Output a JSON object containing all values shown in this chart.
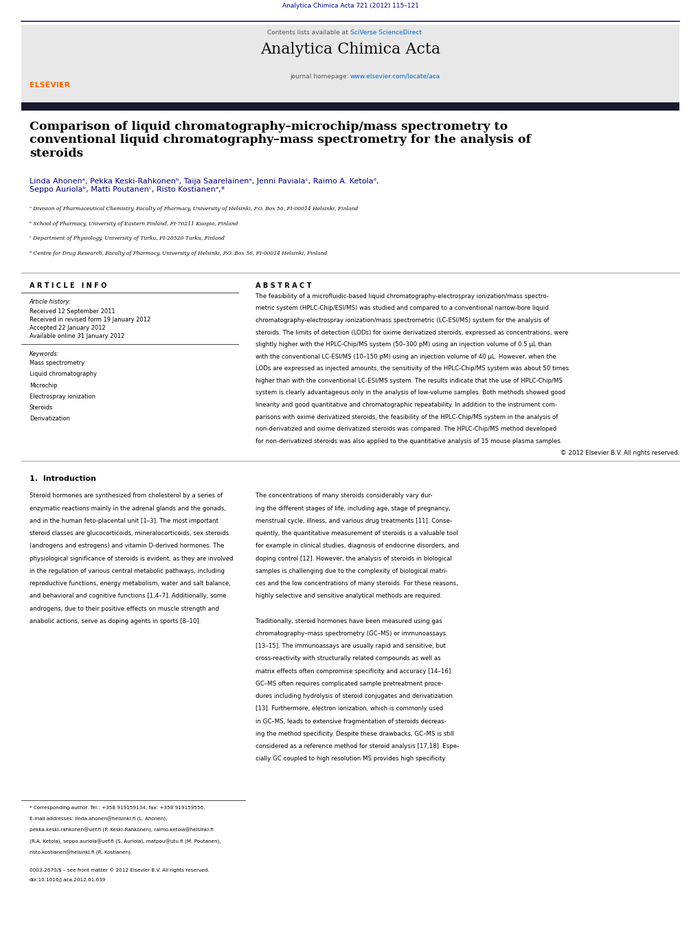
{
  "page_width": 10.2,
  "page_height": 13.51,
  "background_color": "#ffffff",
  "top_journal_ref": "Analytica Chimica Acta 721 (2012) 115–121",
  "top_journal_ref_color": "#00008B",
  "header_bg_color": "#e8e8e8",
  "header_border_color": "#1a1a6e",
  "contents_text": "Contents lists available at ",
  "sciverse_text": "SciVerse ScienceDirect",
  "sciverse_color": "#0066cc",
  "journal_name": "Analytica Chimica Acta",
  "journal_homepage_prefix": "journal homepage: ",
  "journal_url": "www.elsevier.com/locate/aca",
  "journal_url_color": "#0066cc",
  "dark_bar_color": "#1a1a2e",
  "title_text": "Comparison of liquid chromatography–microchip/mass spectrometry to\nconventional liquid chromatography–mass spectrometry for the analysis of\nsteroids",
  "authors_text": "Linda Ahonenᵃ, Pekka Keski-Rahkonenᵇ, Taija Saarelainenᵃ, Jenni Pavialaᶜ, Raimo A. Ketolaᵈ,\nSeppo Auriolaᵇ, Matti Poutanenᶜ, Risto Kostianenᵃ,*",
  "affil_a": "ᵃ Division of Pharmaceutical Chemistry, Faculty of Pharmacy, University of Helsinki, P.O. Box 56, FI-00014 Helsinki, Finland",
  "affil_b": "ᵇ School of Pharmacy, University of Eastern Finland, FI-70211 Kuopio, Finland",
  "affil_c": "ᶜ Department of Physiology, University of Turku, FI-20520 Turku, Finland",
  "affil_d": "ᵈ Centre for Drug Research, Faculty of Pharmacy, University of Helsinki, P.O. Box 56, FI-00014 Helsinki, Finland",
  "article_info_title": "A R T I C L E   I N F O",
  "article_history_title": "Article history:",
  "received1": "Received 12 September 2011",
  "received2": "Received in revised form 19 January 2012",
  "accepted": "Accepted 22 January 2012",
  "available": "Available online 31 January 2012",
  "keywords_title": "Keywords:",
  "keywords": [
    "Mass spectrometry",
    "Liquid chromatography",
    "Microchip",
    "Electrospray ionization",
    "Steroids",
    "Derivatization"
  ],
  "abstract_title": "A B S T R A C T",
  "section1_title": "1.  Introduction",
  "footnote_star": "* Corresponding author. Tel.: +358 919159134; fax: +358 919159556.",
  "footnote_email_line1": "E-mail addresses: linda.ahonen@helsinki.fi (L. Ahonen),",
  "footnote_email_line2": "pekka.keski-rahkonen@uef.fi (P. Keski-Rahkonen), raimo.ketola@helsinki.fi",
  "footnote_email_line3": "(R.A. Ketola), seppo.auriola@uef.fi (S. Auriola), matpou@utu.fi (M. Poutanen),",
  "footnote_email_line4": "risto.kostianen@helsinki.fi (R. Kostianen).",
  "footnote_bottom1": "0003-2670/$ – see front matter © 2012 Elsevier B.V. All rights reserved.",
  "footnote_bottom2": "doi:10.1016/j.aca.2012.01.039",
  "abstract_lines": [
    "The feasibility of a microfluidic-based liquid chromatography-electrospray ionization/mass spectro-",
    "metric system (HPLC-Chip/ESI/MS) was studied and compared to a conventional narrow-bore liquid",
    "chromatography-electrospray ionization/mass spectrometric (LC-ESI/MS) system for the analysis of",
    "steroids. The limits of detection (LODs) for oxime derivatized steroids, expressed as concentrations, were",
    "slightly higher with the HPLC-Chip/MS system (50–300 pM) using an injection volume of 0.5 μL than",
    "with the conventional LC-ESI/MS (10–150 pM) using an injection volume of 40 μL. However, when the",
    "LODs are expressed as injected amounts, the sensitivity of the HPLC-Chip/MS system was about 50 times",
    "higher than with the conventional LC-ESI/MS system. The results indicate that the use of HPLC-Chip/MS",
    "system is clearly advantageous only in the analysis of low-volume samples. Both methods showed good",
    "linearity and good quantitative and chromatographic repeatability. In addition to the instrument com-",
    "parisons with oxime derivatized steroids, the feasibility of the HPLC-Chip/MS system in the analysis of",
    "non-derivatized and oxime derivatized steroids was compared. The HPLC-Chip/MS method developed",
    "for non-derivatized steroids was also applied to the quantitative analysis of 15 mouse plasma samples.",
    "© 2012 Elsevier B.V. All rights reserved."
  ],
  "intro1_lines": [
    "Steroid hormones are synthesized from cholesterol by a series of",
    "enzymatic reactions mainly in the adrenal glands and the gonads,",
    "and in the human feto-placental unit [1–3]. The most important",
    "steroid classes are glucocorticoids, mineralocorticoids, sex steroids",
    "(androgens and estrogens) and vitamin D-derived hormones. The",
    "physiological significance of steroids is evident, as they are involved",
    "in the regulation of various central metabolic pathways, including",
    "reproductive functions, energy metabolism, water and salt balance,",
    "and behavioral and cognitive functions [1,4–7]. Additionally, some",
    "androgens, due to their positive effects on muscle strength and",
    "anabolic actions, serve as doping agents in sports [8–10]."
  ],
  "intro2_lines": [
    "The concentrations of many steroids considerably vary dur-",
    "ing the different stages of life, including age, stage of pregnancy,",
    "menstrual cycle, illness, and various drug treatments [11]. Conse-",
    "quently, the quantitative measurement of steroids is a valuable tool",
    "for example in clinical studies, diagnosis of endocrine disorders, and",
    "doping control [12]. However, the analysis of steroids in biological",
    "samples is challenging due to the complexity of biological matri-",
    "ces and the low concentrations of many steroids. For these reasons,",
    "highly selective and sensitive analytical methods are required.",
    "",
    "Traditionally, steroid hormones have been measured using gas",
    "chromatography–mass spectrometry (GC–MS) or immunoassays",
    "[13–15]. The immunoassays are usually rapid and sensitive, but",
    "cross-reactivity with structurally related compounds as well as",
    "matrix effects often compromise specificity and accuracy [14–16].",
    "GC–MS often requires complicated sample pretreatment proce-",
    "dures including hydrolysis of steroid conjugates and derivatization",
    "[13]. Furthermore, electron ionization, which is commonly used",
    "in GC–MS, leads to extensive fragmentation of steroids decreas-",
    "ing the method specificity. Despite these drawbacks, GC–MS is still",
    "considered as a reference method for steroid analysis [17,18]. Espe-",
    "cially GC coupled to high resolution MS provides high specificity"
  ],
  "text_color": "#000000",
  "link_color": "#0066cc"
}
